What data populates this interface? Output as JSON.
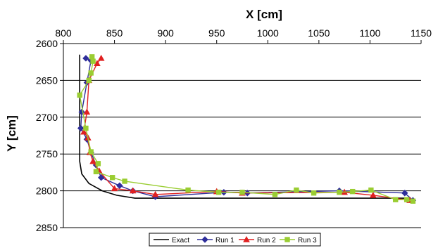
{
  "chart_data": {
    "type": "line",
    "xlabel": "X  [cm]",
    "ylabel": "Y [cm]",
    "x_axis_position": "top",
    "y_axis_reversed": true,
    "xlim": [
      800,
      1150
    ],
    "ylim": [
      2600,
      2850
    ],
    "x_ticks": [
      "800",
      "850",
      "900",
      "950",
      "1000",
      "1050",
      "1100",
      "1150"
    ],
    "y_ticks": [
      "2600",
      "2650",
      "2700",
      "2750",
      "2800",
      "2850"
    ],
    "grid": "horizontal",
    "legend_position": "bottom",
    "series": [
      {
        "name": "Exact",
        "color": "#000000",
        "marker": "none",
        "points": [
          [
            816,
            2615
          ],
          [
            816,
            2760
          ],
          [
            818,
            2777
          ],
          [
            825,
            2790
          ],
          [
            838,
            2800
          ],
          [
            852,
            2806
          ],
          [
            870,
            2810
          ],
          [
            1140,
            2810
          ]
        ]
      },
      {
        "name": "Run 1",
        "color": "#2e2e9a",
        "marker": "diamond",
        "points": [
          [
            822,
            2620
          ],
          [
            827,
            2623
          ],
          [
            823,
            2653
          ],
          [
            818,
            2693
          ],
          [
            817,
            2715
          ],
          [
            823,
            2730
          ],
          [
            827,
            2748
          ],
          [
            832,
            2765
          ],
          [
            837,
            2782
          ],
          [
            855,
            2793
          ],
          [
            868,
            2800
          ],
          [
            890,
            2808
          ],
          [
            957,
            2802
          ],
          [
            980,
            2803
          ],
          [
            1070,
            2800
          ],
          [
            1134,
            2803
          ],
          [
            1142,
            2813
          ]
        ]
      },
      {
        "name": "Run 2",
        "color": "#e02020",
        "marker": "triangle",
        "points": [
          [
            837,
            2620
          ],
          [
            833,
            2627
          ],
          [
            825,
            2650
          ],
          [
            823,
            2693
          ],
          [
            820,
            2720
          ],
          [
            824,
            2728
          ],
          [
            826,
            2748
          ],
          [
            829,
            2760
          ],
          [
            835,
            2773
          ],
          [
            850,
            2797
          ],
          [
            868,
            2800
          ],
          [
            890,
            2805
          ],
          [
            950,
            2801
          ],
          [
            975,
            2803
          ],
          [
            1075,
            2802
          ],
          [
            1103,
            2806
          ],
          [
            1139,
            2813
          ]
        ]
      },
      {
        "name": "Run 3",
        "color": "#9acd32",
        "marker": "square",
        "points": [
          [
            828,
            2618
          ],
          [
            829,
            2624
          ],
          [
            827,
            2640
          ],
          [
            825,
            2650
          ],
          [
            816,
            2670
          ],
          [
            822,
            2715
          ],
          [
            827,
            2747
          ],
          [
            834,
            2763
          ],
          [
            832,
            2774
          ],
          [
            848,
            2782
          ],
          [
            860,
            2787
          ],
          [
            922,
            2799
          ],
          [
            952,
            2802
          ],
          [
            975,
            2802
          ],
          [
            1007,
            2805
          ],
          [
            1028,
            2799
          ],
          [
            1045,
            2803
          ],
          [
            1070,
            2802
          ],
          [
            1083,
            2801
          ],
          [
            1101,
            2799
          ],
          [
            1125,
            2812
          ],
          [
            1136,
            2812
          ],
          [
            1142,
            2814
          ]
        ]
      }
    ]
  }
}
